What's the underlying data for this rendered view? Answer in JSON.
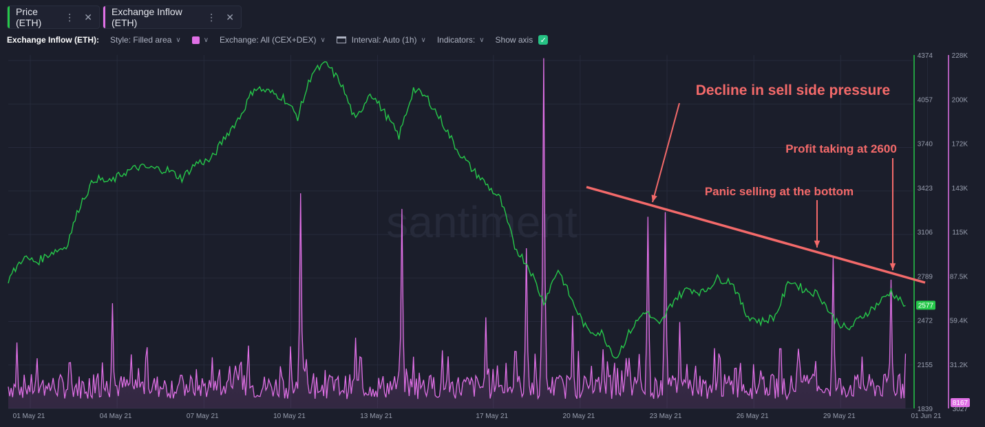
{
  "tabs": [
    {
      "label": "Price (ETH)",
      "color": "#26c94a"
    },
    {
      "label": "Exchange Inflow (ETH)",
      "color": "#e070e6"
    }
  ],
  "toolbar": {
    "title": "Exchange Inflow (ETH):",
    "style": "Style: Filled area",
    "color_swatch": "#e070e6",
    "exchange": "Exchange: All (CEX+DEX)",
    "interval": "Interval: Auto (1h)",
    "indicators": "Indicators:",
    "show_axis": "Show axis"
  },
  "chart_data": {
    "type": "line",
    "x_ticks": [
      "01 May 21",
      "04 May 21",
      "07 May 21",
      "10 May 21",
      "13 May 21",
      "17 May 21",
      "20 May 21",
      "23 May 21",
      "26 May 21",
      "29 May 21",
      "01 Jun 21"
    ],
    "price_axis": {
      "ticks": [
        "4374",
        "4057",
        "3740",
        "3423",
        "3106",
        "2789",
        "2472",
        "2155",
        "1839"
      ],
      "range": [
        1839,
        4374
      ],
      "color": "#26c94a"
    },
    "inflow_axis": {
      "ticks": [
        "228K",
        "200K",
        "172K",
        "143K",
        "115K",
        "87.5K",
        "59.4K",
        "31.2K",
        "3027"
      ],
      "range": [
        3027,
        228000
      ],
      "color": "#e070e6"
    },
    "series": [
      {
        "name": "Price (ETH)",
        "color": "#26c94a",
        "x": [
          0,
          0.5,
          1,
          1.5,
          2,
          2.5,
          3,
          3.5,
          4,
          4.5,
          5,
          5.5,
          6,
          6.5,
          7,
          7.5,
          8,
          8.5,
          9,
          9.5,
          10,
          10.5,
          11,
          11.5,
          12,
          12.5,
          13,
          13.5,
          14,
          14.5,
          15,
          15.5,
          16,
          16.5,
          17,
          17.5,
          18,
          18.5,
          19,
          19.5,
          20,
          20.5,
          21,
          21.5,
          22,
          22.5,
          23,
          23.5,
          24,
          24.5,
          25,
          25.5,
          26,
          26.5,
          27,
          27.5,
          28,
          28.5,
          29,
          29.5,
          30,
          30.5,
          31
        ],
        "values": [
          2760,
          2920,
          2890,
          2960,
          3000,
          3310,
          3490,
          3460,
          3530,
          3570,
          3560,
          3550,
          3490,
          3600,
          3620,
          3790,
          3930,
          4140,
          4110,
          4070,
          3930,
          4250,
          4310,
          4170,
          3900,
          4110,
          3960,
          3790,
          4130,
          4060,
          3890,
          3700,
          3560,
          3450,
          3340,
          3000,
          2850,
          2600,
          2840,
          2600,
          2400,
          2380,
          2200,
          2400,
          2540,
          2430,
          2620,
          2700,
          2670,
          2770,
          2750,
          2510,
          2460,
          2500,
          2760,
          2690,
          2660,
          2490,
          2400,
          2500,
          2580,
          2680,
          2577
        ]
      },
      {
        "name": "Exchange Inflow (ETH)",
        "color": "#e070e6",
        "x": [
          0.3,
          2.1,
          3.6,
          4.8,
          6.5,
          8.3,
          10.1,
          12.0,
          13.6,
          15.0,
          16.5,
          17.2,
          17.9,
          18.5,
          19.5,
          20.7,
          22.1,
          22.7,
          23.2,
          25.3,
          27.3,
          28.5,
          29.5,
          30.5
        ],
        "values": [
          45000,
          32000,
          70000,
          42000,
          28000,
          43000,
          140000,
          48000,
          130000,
          40000,
          61000,
          32000,
          105000,
          226000,
          62000,
          33000,
          125000,
          128000,
          58000,
          32000,
          41000,
          99000,
          36000,
          85000
        ]
      }
    ],
    "last_price_label": "2577",
    "last_inflow_label": "8167",
    "trendline": {
      "from": {
        "x": 21.25,
        "y": 3508
      },
      "to": {
        "x": 31.2,
        "y": 2749
      }
    },
    "annotations": [
      {
        "text": "Decline in sell side pressure",
        "color": "#f46a6a"
      },
      {
        "text": "Profit taking at 2600",
        "color": "#f46a6a"
      },
      {
        "text": "Panic selling at the bottom",
        "color": "#f46a6a"
      }
    ],
    "watermark": "santiment",
    "grid": true
  }
}
